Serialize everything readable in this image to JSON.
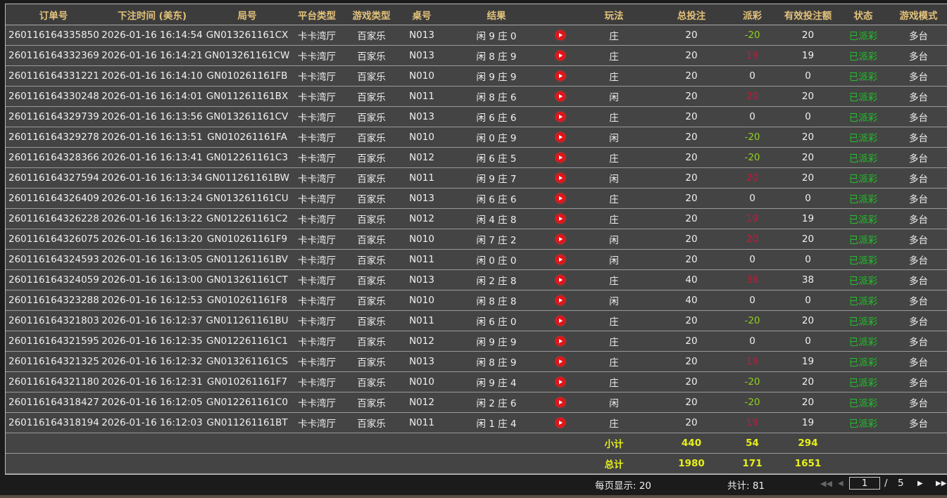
{
  "columns": [
    "订单号",
    "下注时间 (美东)",
    "局号",
    "平台类型",
    "游戏类型",
    "桌号",
    "结果",
    "",
    "玩法",
    "总投注",
    "派彩",
    "有效投注额",
    "状态",
    "游戏模式"
  ],
  "rows": [
    [
      "260116164335850",
      "2026-01-16 16:14:54",
      "GN013261161CX",
      "卡卡湾厅",
      "百家乐",
      "N013",
      "闲 9 庄 0",
      "庄",
      "20",
      "-20",
      "20",
      "已派彩",
      "多台"
    ],
    [
      "260116164332369",
      "2026-01-16 16:14:21",
      "GN013261161CW",
      "卡卡湾厅",
      "百家乐",
      "N013",
      "闲 8 庄 9",
      "庄",
      "20",
      "19",
      "19",
      "已派彩",
      "多台"
    ],
    [
      "260116164331221",
      "2026-01-16 16:14:10",
      "GN010261161FB",
      "卡卡湾厅",
      "百家乐",
      "N010",
      "闲 9 庄 9",
      "庄",
      "20",
      "0",
      "0",
      "已派彩",
      "多台"
    ],
    [
      "260116164330248",
      "2026-01-16 16:14:01",
      "GN011261161BX",
      "卡卡湾厅",
      "百家乐",
      "N011",
      "闲 8 庄 6",
      "闲",
      "20",
      "20",
      "20",
      "已派彩",
      "多台"
    ],
    [
      "260116164329739",
      "2026-01-16 16:13:56",
      "GN013261161CV",
      "卡卡湾厅",
      "百家乐",
      "N013",
      "闲 6 庄 6",
      "庄",
      "20",
      "0",
      "0",
      "已派彩",
      "多台"
    ],
    [
      "260116164329278",
      "2026-01-16 16:13:51",
      "GN010261161FA",
      "卡卡湾厅",
      "百家乐",
      "N010",
      "闲 0 庄 9",
      "闲",
      "20",
      "-20",
      "20",
      "已派彩",
      "多台"
    ],
    [
      "260116164328366",
      "2026-01-16 16:13:41",
      "GN012261161C3",
      "卡卡湾厅",
      "百家乐",
      "N012",
      "闲 6 庄 5",
      "庄",
      "20",
      "-20",
      "20",
      "已派彩",
      "多台"
    ],
    [
      "260116164327594",
      "2026-01-16 16:13:34",
      "GN011261161BW",
      "卡卡湾厅",
      "百家乐",
      "N011",
      "闲 9 庄 7",
      "闲",
      "20",
      "20",
      "20",
      "已派彩",
      "多台"
    ],
    [
      "260116164326409",
      "2026-01-16 16:13:24",
      "GN013261161CU",
      "卡卡湾厅",
      "百家乐",
      "N013",
      "闲 6 庄 6",
      "庄",
      "20",
      "0",
      "0",
      "已派彩",
      "多台"
    ],
    [
      "260116164326228",
      "2026-01-16 16:13:22",
      "GN012261161C2",
      "卡卡湾厅",
      "百家乐",
      "N012",
      "闲 4 庄 8",
      "庄",
      "20",
      "19",
      "19",
      "已派彩",
      "多台"
    ],
    [
      "260116164326075",
      "2026-01-16 16:13:20",
      "GN010261161F9",
      "卡卡湾厅",
      "百家乐",
      "N010",
      "闲 7 庄 2",
      "闲",
      "20",
      "20",
      "20",
      "已派彩",
      "多台"
    ],
    [
      "260116164324593",
      "2026-01-16 16:13:05",
      "GN011261161BV",
      "卡卡湾厅",
      "百家乐",
      "N011",
      "闲 0 庄 0",
      "闲",
      "20",
      "0",
      "0",
      "已派彩",
      "多台"
    ],
    [
      "260116164324059",
      "2026-01-16 16:13:00",
      "GN013261161CT",
      "卡卡湾厅",
      "百家乐",
      "N013",
      "闲 2 庄 8",
      "庄",
      "40",
      "38",
      "38",
      "已派彩",
      "多台"
    ],
    [
      "260116164323288",
      "2026-01-16 16:12:53",
      "GN010261161F8",
      "卡卡湾厅",
      "百家乐",
      "N010",
      "闲 8 庄 8",
      "闲",
      "40",
      "0",
      "0",
      "已派彩",
      "多台"
    ],
    [
      "260116164321803",
      "2026-01-16 16:12:37",
      "GN011261161BU",
      "卡卡湾厅",
      "百家乐",
      "N011",
      "闲 6 庄 0",
      "庄",
      "20",
      "-20",
      "20",
      "已派彩",
      "多台"
    ],
    [
      "260116164321595",
      "2026-01-16 16:12:35",
      "GN012261161C1",
      "卡卡湾厅",
      "百家乐",
      "N012",
      "闲 9 庄 9",
      "庄",
      "20",
      "0",
      "0",
      "已派彩",
      "多台"
    ],
    [
      "260116164321325",
      "2026-01-16 16:12:32",
      "GN013261161CS",
      "卡卡湾厅",
      "百家乐",
      "N013",
      "闲 8 庄 9",
      "庄",
      "20",
      "19",
      "19",
      "已派彩",
      "多台"
    ],
    [
      "260116164321180",
      "2026-01-16 16:12:31",
      "GN010261161F7",
      "卡卡湾厅",
      "百家乐",
      "N010",
      "闲 9 庄 4",
      "庄",
      "20",
      "-20",
      "20",
      "已派彩",
      "多台"
    ],
    [
      "260116164318427",
      "2026-01-16 16:12:05",
      "GN012261161C0",
      "卡卡湾厅",
      "百家乐",
      "N012",
      "闲 2 庄 6",
      "闲",
      "20",
      "-20",
      "20",
      "已派彩",
      "多台"
    ],
    [
      "260116164318194",
      "2026-01-16 16:12:03",
      "GN011261161BT",
      "卡卡湾厅",
      "百家乐",
      "N011",
      "闲 1 庄 4",
      "庄",
      "20",
      "19",
      "19",
      "已派彩",
      "多台"
    ]
  ],
  "subtotal": {
    "label": "小计",
    "total_bet": "440",
    "payout": "54",
    "valid_bet": "294"
  },
  "grand_total": {
    "label": "总计",
    "total_bet": "1980",
    "payout": "171",
    "valid_bet": "1651"
  },
  "footer": {
    "per_page": "每页显示: 20",
    "total": "共计: 81",
    "current_page": "1",
    "separator": "/",
    "total_pages": "5"
  },
  "colors": {
    "header_text": "#e3c27a",
    "payout_negative": "#8fd11c",
    "payout_positive": "#c8163c",
    "status": "#22c02a",
    "summary": "#e6f01a"
  },
  "icons": {
    "replay": "play-video-icon"
  }
}
